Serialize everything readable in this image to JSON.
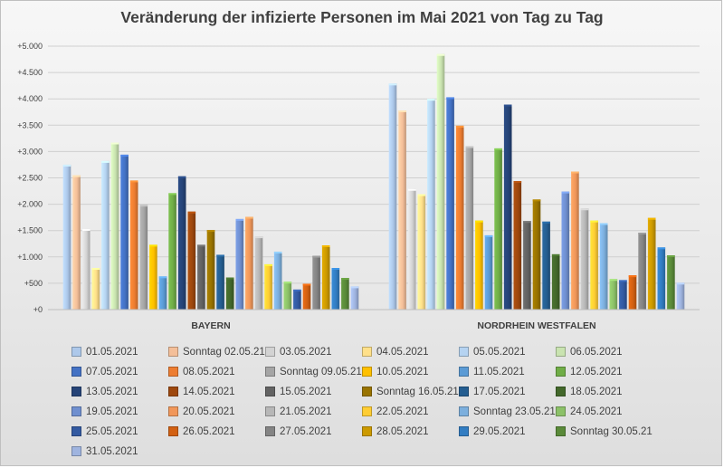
{
  "chart_data": {
    "type": "bar",
    "title": "Veränderung der infizierte Personen im Mai 2021 von Tag zu Tag",
    "xlabel": "",
    "ylabel": "",
    "ylim": [
      0,
      5000
    ],
    "ytick_values": [
      0,
      500,
      1000,
      1500,
      2000,
      2500,
      3000,
      3500,
      4000,
      4500,
      5000
    ],
    "ytick_labels": [
      "+0",
      "+500",
      "+1.000",
      "+1.500",
      "+2.000",
      "+2.500",
      "+3.000",
      "+3.500",
      "+4.000",
      "+4.500",
      "+5.000"
    ],
    "grid": true,
    "legend_position": "bottom",
    "categories": [
      "BAYERN",
      "NORDRHEIN WESTFALEN"
    ],
    "series": [
      {
        "name": "01.05.2021",
        "color": "#adc8ea",
        "values": [
          2750,
          4290
        ]
      },
      {
        "name": "Sonntag 02.05.21",
        "color": "#f4bf99",
        "values": [
          2550,
          3780
        ]
      },
      {
        "name": "03.05.2021",
        "color": "#d3d3d3",
        "values": [
          1530,
          2290
        ]
      },
      {
        "name": "04.05.2021",
        "color": "#ffe08a",
        "values": [
          790,
          2190
        ]
      },
      {
        "name": "05.05.2021",
        "color": "#b5d3f1",
        "values": [
          2820,
          4000
        ]
      },
      {
        "name": "06.05.2021",
        "color": "#c9e3b0",
        "values": [
          3170,
          4850
        ]
      },
      {
        "name": "07.05.2021",
        "color": "#4472c4",
        "values": [
          2940,
          4030
        ]
      },
      {
        "name": "08.05.2021",
        "color": "#ed7d31",
        "values": [
          2450,
          3490
        ]
      },
      {
        "name": "Sonntag 09.05.21",
        "color": "#a5a5a5",
        "values": [
          1990,
          3100
        ]
      },
      {
        "name": "10.05.2021",
        "color": "#ffc000",
        "values": [
          1230,
          1690
        ]
      },
      {
        "name": "11.05.2021",
        "color": "#5b9bd5",
        "values": [
          630,
          1410
        ]
      },
      {
        "name": "12.05.2021",
        "color": "#70ad47",
        "values": [
          2210,
          3060
        ]
      },
      {
        "name": "13.05.2021",
        "color": "#264478",
        "values": [
          2530,
          3890
        ]
      },
      {
        "name": "14.05.2021",
        "color": "#9e480e",
        "values": [
          1860,
          2440
        ]
      },
      {
        "name": "15.05.2021",
        "color": "#636363",
        "values": [
          1230,
          1680
        ]
      },
      {
        "name": "Sonntag 16.05.21",
        "color": "#997300",
        "values": [
          1510,
          2090
        ]
      },
      {
        "name": "17.05.2021",
        "color": "#255e91",
        "values": [
          1040,
          1670
        ]
      },
      {
        "name": "18.05.2021",
        "color": "#43682b",
        "values": [
          610,
          1050
        ]
      },
      {
        "name": "19.05.2021",
        "color": "#6f8fcf",
        "values": [
          1720,
          2240
        ]
      },
      {
        "name": "20.05.2021",
        "color": "#f1975a",
        "values": [
          1760,
          2620
        ]
      },
      {
        "name": "21.05.2021",
        "color": "#b7b7b7",
        "values": [
          1390,
          1920
        ]
      },
      {
        "name": "22.05.2021",
        "color": "#ffcd33",
        "values": [
          860,
          1690
        ]
      },
      {
        "name": "Sonntag 23.05.21",
        "color": "#7cafdd",
        "values": [
          1100,
          1640
        ]
      },
      {
        "name": "24.05.2021",
        "color": "#8cc168",
        "values": [
          530,
          580
        ]
      },
      {
        "name": "25.05.2021",
        "color": "#335aa1",
        "values": [
          380,
          560
        ]
      },
      {
        "name": "26.05.2021",
        "color": "#d26012",
        "values": [
          490,
          650
        ]
      },
      {
        "name": "27.05.2021",
        "color": "#848484",
        "values": [
          1020,
          1460
        ]
      },
      {
        "name": "28.05.2021",
        "color": "#cc9a00",
        "values": [
          1220,
          1740
        ]
      },
      {
        "name": "29.05.2021",
        "color": "#327dc2",
        "values": [
          790,
          1180
        ]
      },
      {
        "name": "Sonntag 30.05.21",
        "color": "#5a8a39",
        "values": [
          600,
          1030
        ]
      },
      {
        "name": "31.05.2021",
        "color": "#9fb4df",
        "values": [
          440,
          510
        ]
      }
    ]
  }
}
